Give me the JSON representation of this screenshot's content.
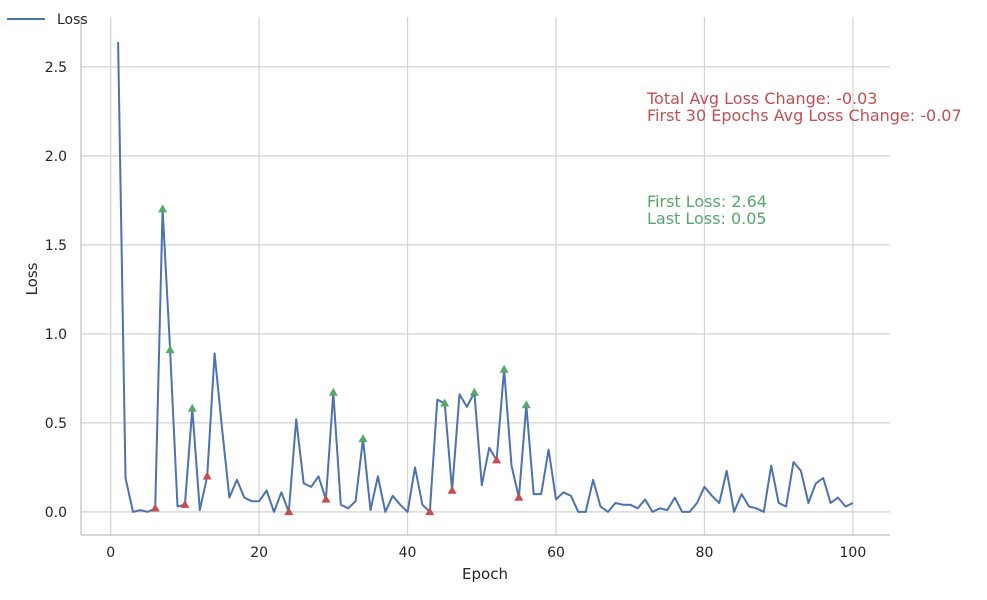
{
  "chart_data": {
    "type": "line",
    "title": "",
    "xlabel": "Epoch",
    "ylabel": "Loss",
    "xlim": [
      -4,
      105
    ],
    "ylim": [
      -0.13,
      2.78
    ],
    "xticks": [
      0,
      20,
      40,
      60,
      80,
      100
    ],
    "yticks": [
      0.0,
      0.5,
      1.0,
      1.5,
      2.0,
      2.5
    ],
    "xtick_labels": [
      "0",
      "20",
      "40",
      "60",
      "80",
      "100"
    ],
    "ytick_labels": [
      "0.0",
      "0.5",
      "1.0",
      "1.5",
      "2.0",
      "2.5"
    ],
    "grid": true,
    "legend": {
      "entries": [
        "Loss"
      ],
      "position": "top-left"
    },
    "series": [
      {
        "name": "Loss",
        "color": "#4c72b0",
        "x": [
          1,
          2,
          3,
          4,
          5,
          6,
          7,
          8,
          9,
          10,
          11,
          12,
          13,
          14,
          15,
          16,
          17,
          18,
          19,
          20,
          21,
          22,
          23,
          24,
          25,
          26,
          27,
          28,
          29,
          30,
          31,
          32,
          33,
          34,
          35,
          36,
          37,
          38,
          39,
          40,
          41,
          42,
          43,
          44,
          45,
          46,
          47,
          48,
          49,
          50,
          51,
          52,
          53,
          54,
          55,
          56,
          57,
          58,
          59,
          60,
          61,
          62,
          63,
          64,
          65,
          66,
          67,
          68,
          69,
          70,
          71,
          72,
          73,
          74,
          75,
          76,
          77,
          78,
          79,
          80,
          81,
          82,
          83,
          84,
          85,
          86,
          87,
          88,
          89,
          90,
          91,
          92,
          93,
          94,
          95,
          96,
          97,
          98,
          99,
          100
        ],
        "y": [
          2.64,
          0.19,
          0.0,
          0.01,
          0.0,
          0.02,
          1.7,
          0.91,
          0.03,
          0.04,
          0.58,
          0.01,
          0.2,
          0.89,
          0.47,
          0.08,
          0.18,
          0.08,
          0.06,
          0.06,
          0.12,
          0.0,
          0.11,
          0.0,
          0.52,
          0.16,
          0.14,
          0.2,
          0.07,
          0.67,
          0.04,
          0.02,
          0.06,
          0.41,
          0.01,
          0.2,
          0.0,
          0.09,
          0.04,
          0.0,
          0.25,
          0.04,
          0.0,
          0.63,
          0.61,
          0.12,
          0.66,
          0.59,
          0.67,
          0.15,
          0.36,
          0.29,
          0.8,
          0.26,
          0.08,
          0.6,
          0.1,
          0.1,
          0.35,
          0.07,
          0.11,
          0.09,
          0.0,
          0.0,
          0.18,
          0.03,
          0.0,
          0.05,
          0.04,
          0.04,
          0.02,
          0.07,
          0.0,
          0.02,
          0.01,
          0.08,
          0.0,
          0.0,
          0.05,
          0.14,
          0.09,
          0.05,
          0.23,
          0.0,
          0.1,
          0.03,
          0.02,
          0.0,
          0.26,
          0.05,
          0.03,
          0.28,
          0.23,
          0.05,
          0.16,
          0.19,
          0.05,
          0.08,
          0.03,
          0.05
        ]
      }
    ],
    "markers": {
      "up": {
        "color": "#55a868",
        "x": [
          7,
          8,
          11,
          30,
          34,
          45,
          49,
          53,
          56
        ],
        "y": [
          1.7,
          0.91,
          0.58,
          0.67,
          0.41,
          0.61,
          0.67,
          0.8,
          0.6
        ]
      },
      "down": {
        "color": "#c44e52",
        "x": [
          6,
          10,
          13,
          24,
          29,
          43,
          46,
          52,
          55
        ],
        "y": [
          0.02,
          0.04,
          0.2,
          0.0,
          0.07,
          0.0,
          0.12,
          0.29,
          0.08
        ]
      }
    },
    "annotations": {
      "total_avg_change": "Total Avg Loss Change: -0.03",
      "first30_avg_change": "First 30 Epochs Avg Loss Change: -0.07",
      "first_loss": "First Loss: 2.64",
      "last_loss": "Last Loss: 0.05",
      "red_color": "#c44e52",
      "green_color": "#55a868"
    }
  }
}
